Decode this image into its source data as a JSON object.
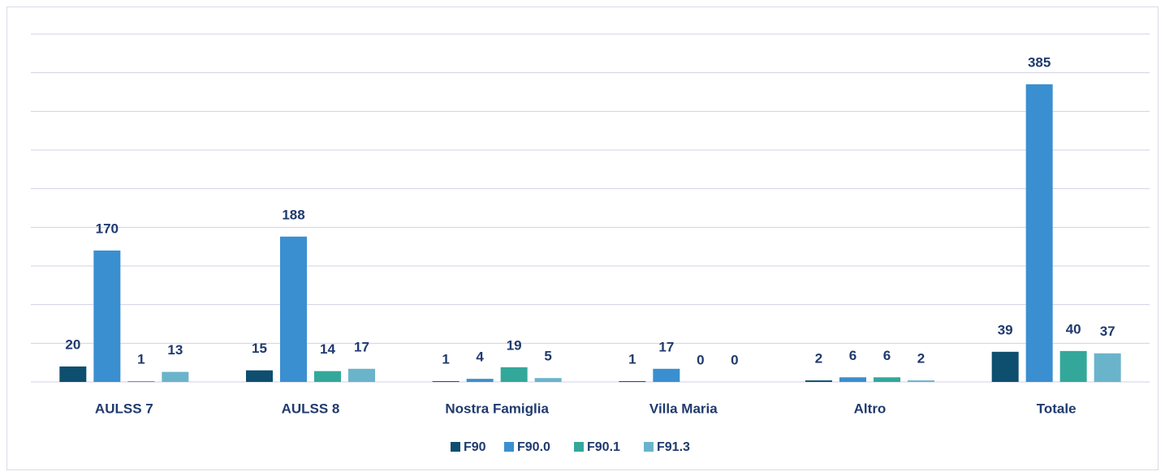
{
  "chart_data": {
    "type": "bar",
    "categories": [
      "AULSS 7",
      "AULSS 8",
      "Nostra Famiglia",
      "Villa Maria",
      "Altro",
      "Totale"
    ],
    "series": [
      {
        "name": "F90",
        "color": "#0e4e6f",
        "values": [
          20,
          15,
          1,
          1,
          2,
          39
        ]
      },
      {
        "name": "F90.0",
        "color": "#3a8fd0",
        "values": [
          170,
          188,
          4,
          17,
          6,
          385
        ]
      },
      {
        "name": "F90.1",
        "color": "#33a89a",
        "values": [
          1,
          14,
          19,
          0,
          6,
          40
        ]
      },
      {
        "name": "F91.3",
        "color": "#6ab4cb",
        "values": [
          13,
          17,
          5,
          0,
          2,
          37
        ]
      }
    ],
    "ylim": [
      0,
      450
    ],
    "yticks": [
      0,
      50,
      100,
      150,
      200,
      250,
      300,
      350,
      400,
      450
    ],
    "grid": true
  }
}
